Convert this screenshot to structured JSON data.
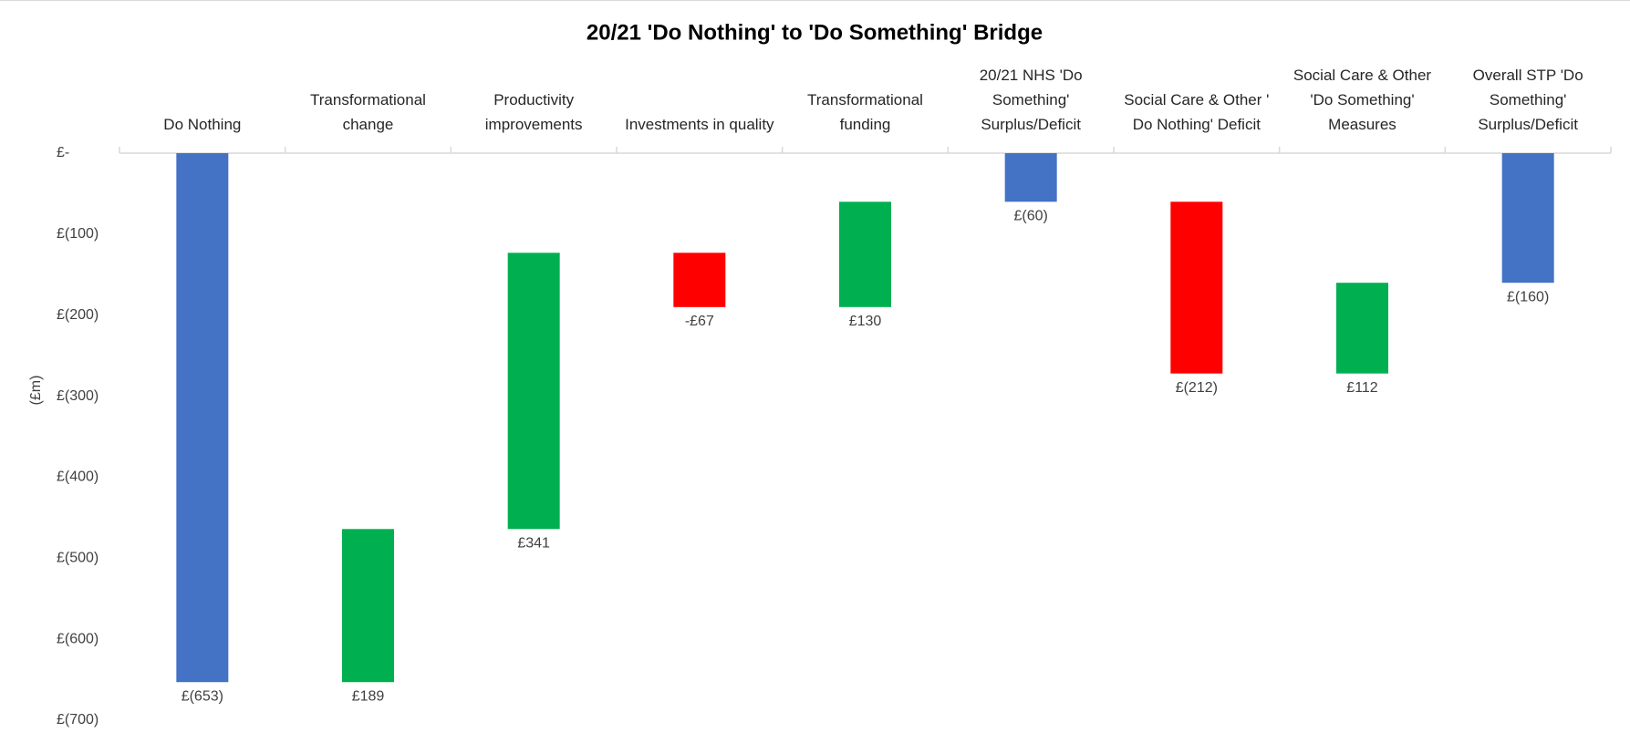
{
  "chart_data": {
    "type": "waterfall",
    "title": "20/21 'Do Nothing' to 'Do Something' Bridge",
    "y_label": "(£m)",
    "categories": [
      "Do Nothing",
      "Transformational change",
      "Productivity improvements",
      "Investments in quality",
      "Transformational funding",
      "20/21 NHS 'Do Something' Surplus/Deficit",
      "Social Care & Other ' Do Nothing' Deficit",
      "Social Care & Other 'Do Something' Measures",
      "Overall STP 'Do Something' Surplus/Deficit"
    ],
    "measures": [
      "total",
      "relative",
      "relative",
      "relative",
      "relative",
      "total",
      "relative",
      "relative",
      "total"
    ],
    "values": [
      -653,
      189,
      341,
      -67,
      130,
      -60,
      -212,
      112,
      -160
    ],
    "value_labels": [
      "£(653)",
      "£189",
      "£341",
      "-£67",
      "£130",
      "£(60)",
      "£(212)",
      "£112",
      "£(160)"
    ],
    "colors": {
      "total": "#4472c4",
      "increase": "#00b050",
      "decrease": "#ff0000"
    },
    "ylim": [
      -700,
      0
    ],
    "yticks": [
      {
        "value": 0,
        "label": "£-"
      },
      {
        "value": -100,
        "label": "£(100)"
      },
      {
        "value": -200,
        "label": "£(200)"
      },
      {
        "value": -300,
        "label": "£(300)"
      },
      {
        "value": -400,
        "label": "£(400)"
      },
      {
        "value": -500,
        "label": "£(500)"
      },
      {
        "value": -600,
        "label": "£(600)"
      },
      {
        "value": -700,
        "label": "£(700)"
      }
    ]
  }
}
